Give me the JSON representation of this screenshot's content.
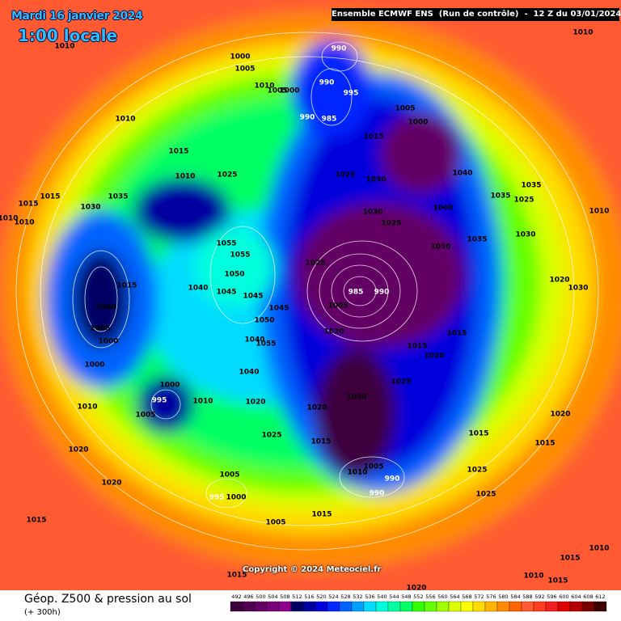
{
  "header": {
    "date": "Mardi 16 janvier 2024",
    "time": "1:00 locale",
    "run_info": "Ensemble ECMWF ENS  (Run de contrôle)  -  12 Z du 03/01/2024"
  },
  "copyright": "Copyright © 2024 Meteociel.fr",
  "footer": {
    "product": "Géop. Z500 & pression au sol",
    "lead": "(+ 300h)"
  },
  "legend": {
    "values": [
      492,
      496,
      500,
      504,
      508,
      512,
      516,
      520,
      524,
      528,
      532,
      536,
      540,
      544,
      548,
      552,
      556,
      560,
      564,
      568,
      572,
      576,
      580,
      584,
      588,
      592,
      596,
      600,
      604,
      608,
      612
    ],
    "colors": [
      "#3c003c",
      "#500050",
      "#640064",
      "#780078",
      "#8c008c",
      "#000064",
      "#0000a0",
      "#0000dc",
      "#0028ff",
      "#0064ff",
      "#00a0ff",
      "#00dcff",
      "#00ffdc",
      "#00ffa0",
      "#00ff64",
      "#32ff00",
      "#64ff00",
      "#a0ff00",
      "#dcff00",
      "#ffff00",
      "#ffdc00",
      "#ffb400",
      "#ff8c00",
      "#ff6400",
      "#ff5a32",
      "#ff3c1e",
      "#f01e1e",
      "#dc0000",
      "#b40000",
      "#780000",
      "#3c0000"
    ]
  },
  "pressure_labels": [
    "1010",
    "1000",
    "1005",
    "1010",
    "1005",
    "1000",
    "990",
    "990",
    "995",
    "990",
    "985",
    "1005",
    "1000",
    "1015",
    "1010",
    "1015",
    "1010",
    "1025",
    "1025",
    "1030",
    "1040",
    "1015",
    "1015",
    "1030",
    "1035",
    "1010",
    "1010",
    "1025",
    "1030",
    "1040",
    "1035",
    "1025",
    "1035",
    "1010",
    "1055",
    "1055",
    "1050",
    "1025",
    "1030",
    "1035",
    "1030",
    "985",
    "990",
    "1005",
    "1015",
    "1000",
    "1005",
    "1000",
    "1000",
    "1040",
    "1045",
    "1045",
    "1045",
    "1050",
    "1020",
    "1055",
    "1040",
    "1015",
    "1020",
    "1015",
    "1040",
    "1025",
    "1020",
    "1030",
    "1000",
    "995",
    "1005",
    "1010",
    "1020",
    "1030",
    "1020",
    "1010",
    "1020",
    "1025",
    "1015",
    "1020",
    "1020",
    "1005",
    "995",
    "1000",
    "1005",
    "1010",
    "990",
    "990",
    "1015",
    "1025",
    "1025",
    "1015",
    "1015",
    "1005",
    "1015",
    "1010",
    "1015",
    "1010",
    "1015",
    "1015",
    "1020",
    "1010"
  ]
}
